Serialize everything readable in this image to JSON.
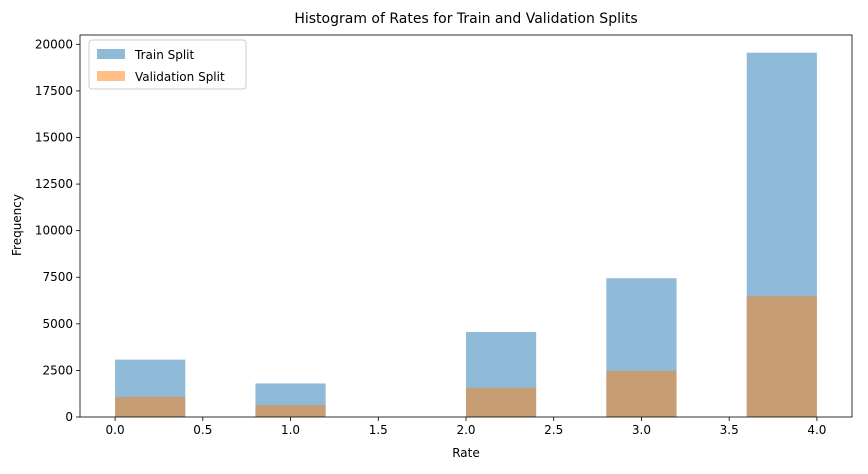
{
  "chart_data": {
    "type": "bar",
    "title": "Histogram of Rates for Train and Validation Splits",
    "xlabel": "Rate",
    "ylabel": "Frequency",
    "xlim": [
      -0.2,
      4.2
    ],
    "ylim": [
      0,
      20500
    ],
    "xticks": [
      "0.0",
      "0.5",
      "1.0",
      "1.5",
      "2.0",
      "2.5",
      "3.0",
      "3.5",
      "4.0"
    ],
    "yticks": [
      "0",
      "2500",
      "5000",
      "7500",
      "10000",
      "12500",
      "15000",
      "17500",
      "20000"
    ],
    "grid": false,
    "legend_position": "top-left",
    "bins": [
      [
        0.0,
        0.4
      ],
      [
        0.4,
        0.8
      ],
      [
        0.8,
        1.2
      ],
      [
        1.2,
        1.6
      ],
      [
        1.6,
        2.0
      ],
      [
        2.0,
        2.4
      ],
      [
        2.4,
        2.8
      ],
      [
        2.8,
        3.2
      ],
      [
        3.2,
        3.6
      ],
      [
        3.6,
        4.0
      ]
    ],
    "series": [
      {
        "name": "Train Split",
        "color": "#1f77b4",
        "opacity": 0.5,
        "values": [
          3080,
          0,
          1800,
          0,
          0,
          4560,
          0,
          7450,
          0,
          19550
        ]
      },
      {
        "name": "Validation Split",
        "color": "#ff7f0e",
        "opacity": 0.5,
        "values": [
          1080,
          0,
          640,
          0,
          0,
          1560,
          0,
          2480,
          0,
          6480
        ]
      }
    ]
  }
}
